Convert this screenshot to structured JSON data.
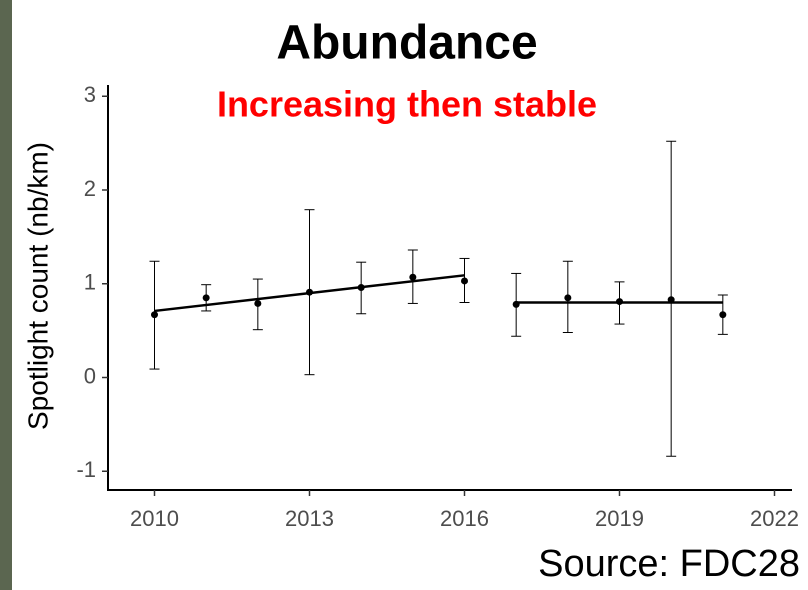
{
  "chart_data": {
    "type": "scatter",
    "title": "Abundance",
    "subtitle": "Increasing then stable",
    "ylabel": "Spotlight count (nb/km)",
    "source": "Source: FDC28",
    "xlim": [
      2009.1,
      2022.3
    ],
    "xticks": [
      2010,
      2013,
      2016,
      2019,
      2022
    ],
    "ylim": [
      -1.2,
      3.12
    ],
    "yticks": [
      -1,
      0,
      1,
      2,
      3
    ],
    "color": "#000000",
    "subtitle_color": "#ff0000",
    "x": [
      2010,
      2011,
      2012,
      2013,
      2014,
      2015,
      2016,
      2017,
      2018,
      2019,
      2020,
      2021
    ],
    "values": [
      0.67,
      0.85,
      0.79,
      0.91,
      0.96,
      1.07,
      1.03,
      0.78,
      0.85,
      0.81,
      0.83,
      0.67
    ],
    "lower": [
      0.09,
      0.71,
      0.51,
      0.03,
      0.68,
      0.79,
      0.8,
      0.44,
      0.48,
      0.57,
      -0.84,
      0.46
    ],
    "upper": [
      1.24,
      0.99,
      1.05,
      1.79,
      1.23,
      1.36,
      1.27,
      1.11,
      1.24,
      1.02,
      2.52,
      0.88
    ],
    "trends": [
      {
        "x": [
          2010,
          2016
        ],
        "values": [
          0.71,
          1.09
        ]
      },
      {
        "x": [
          2017,
          2021
        ],
        "values": [
          0.8,
          0.8
        ]
      }
    ]
  }
}
